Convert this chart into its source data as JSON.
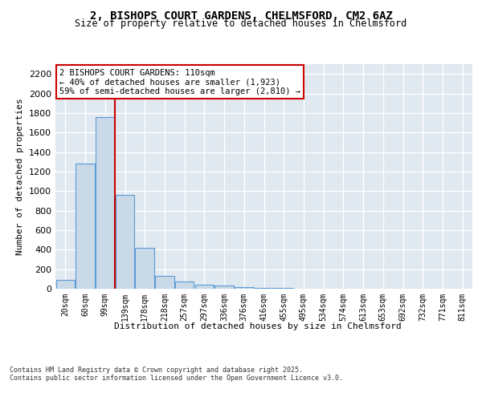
{
  "title_line1": "2, BISHOPS COURT GARDENS, CHELMSFORD, CM2 6AZ",
  "title_line2": "Size of property relative to detached houses in Chelmsford",
  "xlabel": "Distribution of detached houses by size in Chelmsford",
  "ylabel": "Number of detached properties",
  "footnote_line1": "Contains HM Land Registry data © Crown copyright and database right 2025.",
  "footnote_line2": "Contains public sector information licensed under the Open Government Licence v3.0.",
  "categories": [
    "20sqm",
    "60sqm",
    "99sqm",
    "139sqm",
    "178sqm",
    "218sqm",
    "257sqm",
    "297sqm",
    "336sqm",
    "376sqm",
    "416sqm",
    "455sqm",
    "495sqm",
    "534sqm",
    "574sqm",
    "613sqm",
    "653sqm",
    "692sqm",
    "732sqm",
    "771sqm",
    "811sqm"
  ],
  "values": [
    90,
    1280,
    1760,
    960,
    415,
    135,
    75,
    45,
    30,
    18,
    10,
    5,
    4,
    3,
    2,
    1,
    1,
    1,
    1,
    1,
    1
  ],
  "bar_color": "#c9d9e8",
  "bar_edge_color": "#5b9bd5",
  "background_color": "#e0e8f0",
  "grid_color": "#ffffff",
  "fig_background": "#ffffff",
  "ylim": [
    0,
    2300
  ],
  "yticks": [
    0,
    200,
    400,
    600,
    800,
    1000,
    1200,
    1400,
    1600,
    1800,
    2000,
    2200
  ],
  "vline_x_index": 2.5,
  "vline_color": "#cc0000",
  "annotation_text": "2 BISHOPS COURT GARDENS: 110sqm\n← 40% of detached houses are smaller (1,923)\n59% of semi-detached houses are larger (2,810) →",
  "annotation_box_color": "#cc0000"
}
